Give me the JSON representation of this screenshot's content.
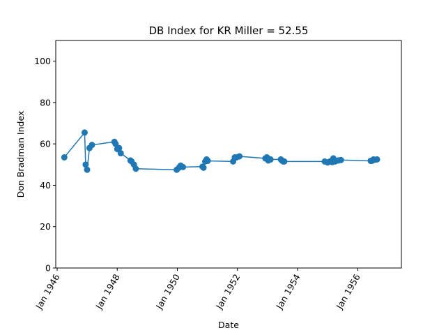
{
  "chart_data": {
    "type": "line",
    "title": "DB Index for KR Miller = 52.55",
    "xlabel": "Date",
    "ylabel": "Don Bradman Index",
    "ylim": [
      0,
      110
    ],
    "xlim": [
      "1945-12-15",
      "1957-06-15"
    ],
    "grid": false,
    "marker": "circle",
    "color": "#1f77b4",
    "x_ticks": [
      {
        "date": "1946-01-01",
        "label": "Jan 1946"
      },
      {
        "date": "1948-01-01",
        "label": "Jan 1948"
      },
      {
        "date": "1950-01-01",
        "label": "Jan 1950"
      },
      {
        "date": "1952-01-01",
        "label": "Jan 1952"
      },
      {
        "date": "1954-01-01",
        "label": "Jan 1954"
      },
      {
        "date": "1956-01-01",
        "label": "Jan 1956"
      }
    ],
    "y_ticks": [
      0,
      20,
      40,
      60,
      80,
      100
    ],
    "series": [
      {
        "x": [
          "1946-03-29",
          "1946-12-01",
          "1946-12-13",
          "1946-12-31",
          "1947-01-29",
          "1947-02-28",
          "1947-11-28",
          "1947-12-12",
          "1948-01-02",
          "1948-01-23",
          "1948-02-13",
          "1948-06-10",
          "1948-06-24",
          "1948-07-22",
          "1948-08-14",
          "1949-12-24",
          "1950-01-20",
          "1950-02-10",
          "1950-03-10",
          "1950-11-01",
          "1950-11-15",
          "1950-12-05",
          "1950-12-22",
          "1951-01-05",
          "1951-11-09",
          "1951-11-30",
          "1951-12-21",
          "1952-01-25",
          "1952-12-05",
          "1952-12-24",
          "1953-01-09",
          "1953-02-06",
          "1953-06-11",
          "1953-06-25",
          "1953-07-09",
          "1953-07-23",
          "1954-11-26",
          "1955-01-01",
          "1955-01-28",
          "1955-02-25",
          "1955-03-11",
          "1955-04-02",
          "1955-04-11",
          "1955-05-11",
          "1955-06-11",
          "1956-06-07",
          "1956-06-21",
          "1956-07-11",
          "1956-07-26",
          "1956-08-23"
        ],
        "y": [
          53.5,
          65.5,
          50,
          47.5,
          58,
          59.5,
          61,
          60,
          57.5,
          58,
          55.5,
          52,
          51.5,
          50,
          48,
          47.5,
          48.5,
          49.5,
          48.8,
          49,
          48.5,
          51.5,
          52.5,
          51.8,
          51.5,
          53.5,
          53.5,
          54,
          53,
          53.5,
          52,
          52.5,
          52.5,
          52,
          51.5,
          51.5,
          51.5,
          51,
          51.5,
          51.2,
          53,
          51.5,
          51.8,
          52,
          52.2,
          51.8,
          51.8,
          52.5,
          52.3,
          52.5
        ]
      }
    ]
  }
}
